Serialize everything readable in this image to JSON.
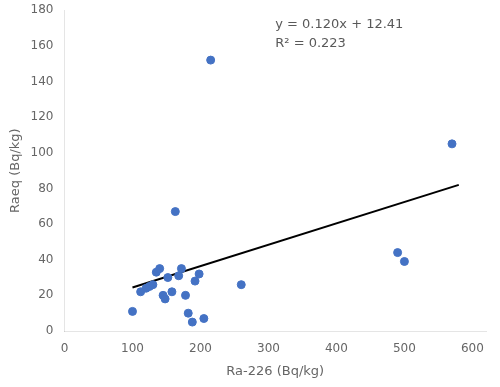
{
  "chart_data": {
    "type": "scatter",
    "xlabel": "Ra-226 (Bq/kg)",
    "ylabel": "Raeq (Bq/kg)",
    "series": [
      {
        "type": "scatter",
        "color": "#4472C4",
        "marker": "circle",
        "x": [
          100,
          112,
          120,
          125,
          130,
          135,
          140,
          145,
          148,
          152,
          158,
          163,
          168,
          172,
          178,
          182,
          188,
          192,
          198,
          205,
          215,
          260,
          490,
          500,
          570
        ],
        "values": [
          11,
          22,
          24,
          25,
          26,
          33,
          35,
          20,
          18,
          30,
          22,
          67,
          31,
          35,
          20,
          10,
          5,
          28,
          32,
          7,
          152,
          26,
          44,
          39,
          105
        ]
      },
      {
        "type": "line",
        "color": "black",
        "line_style": "solid",
        "x": [
          100,
          580
        ],
        "values": [
          24.41,
          82.01
        ]
      }
    ],
    "annotations": [
      "y = 0.120x + 12.41",
      "R² = 0.223"
    ],
    "xlim": [
      0,
      620
    ],
    "ylim": [
      0,
      180
    ],
    "xticks": [
      0,
      100,
      200,
      300,
      400,
      500,
      600
    ],
    "yticks": [
      0,
      20,
      40,
      60,
      80,
      100,
      120,
      140,
      160,
      180
    ],
    "grid": false,
    "legend": false
  }
}
